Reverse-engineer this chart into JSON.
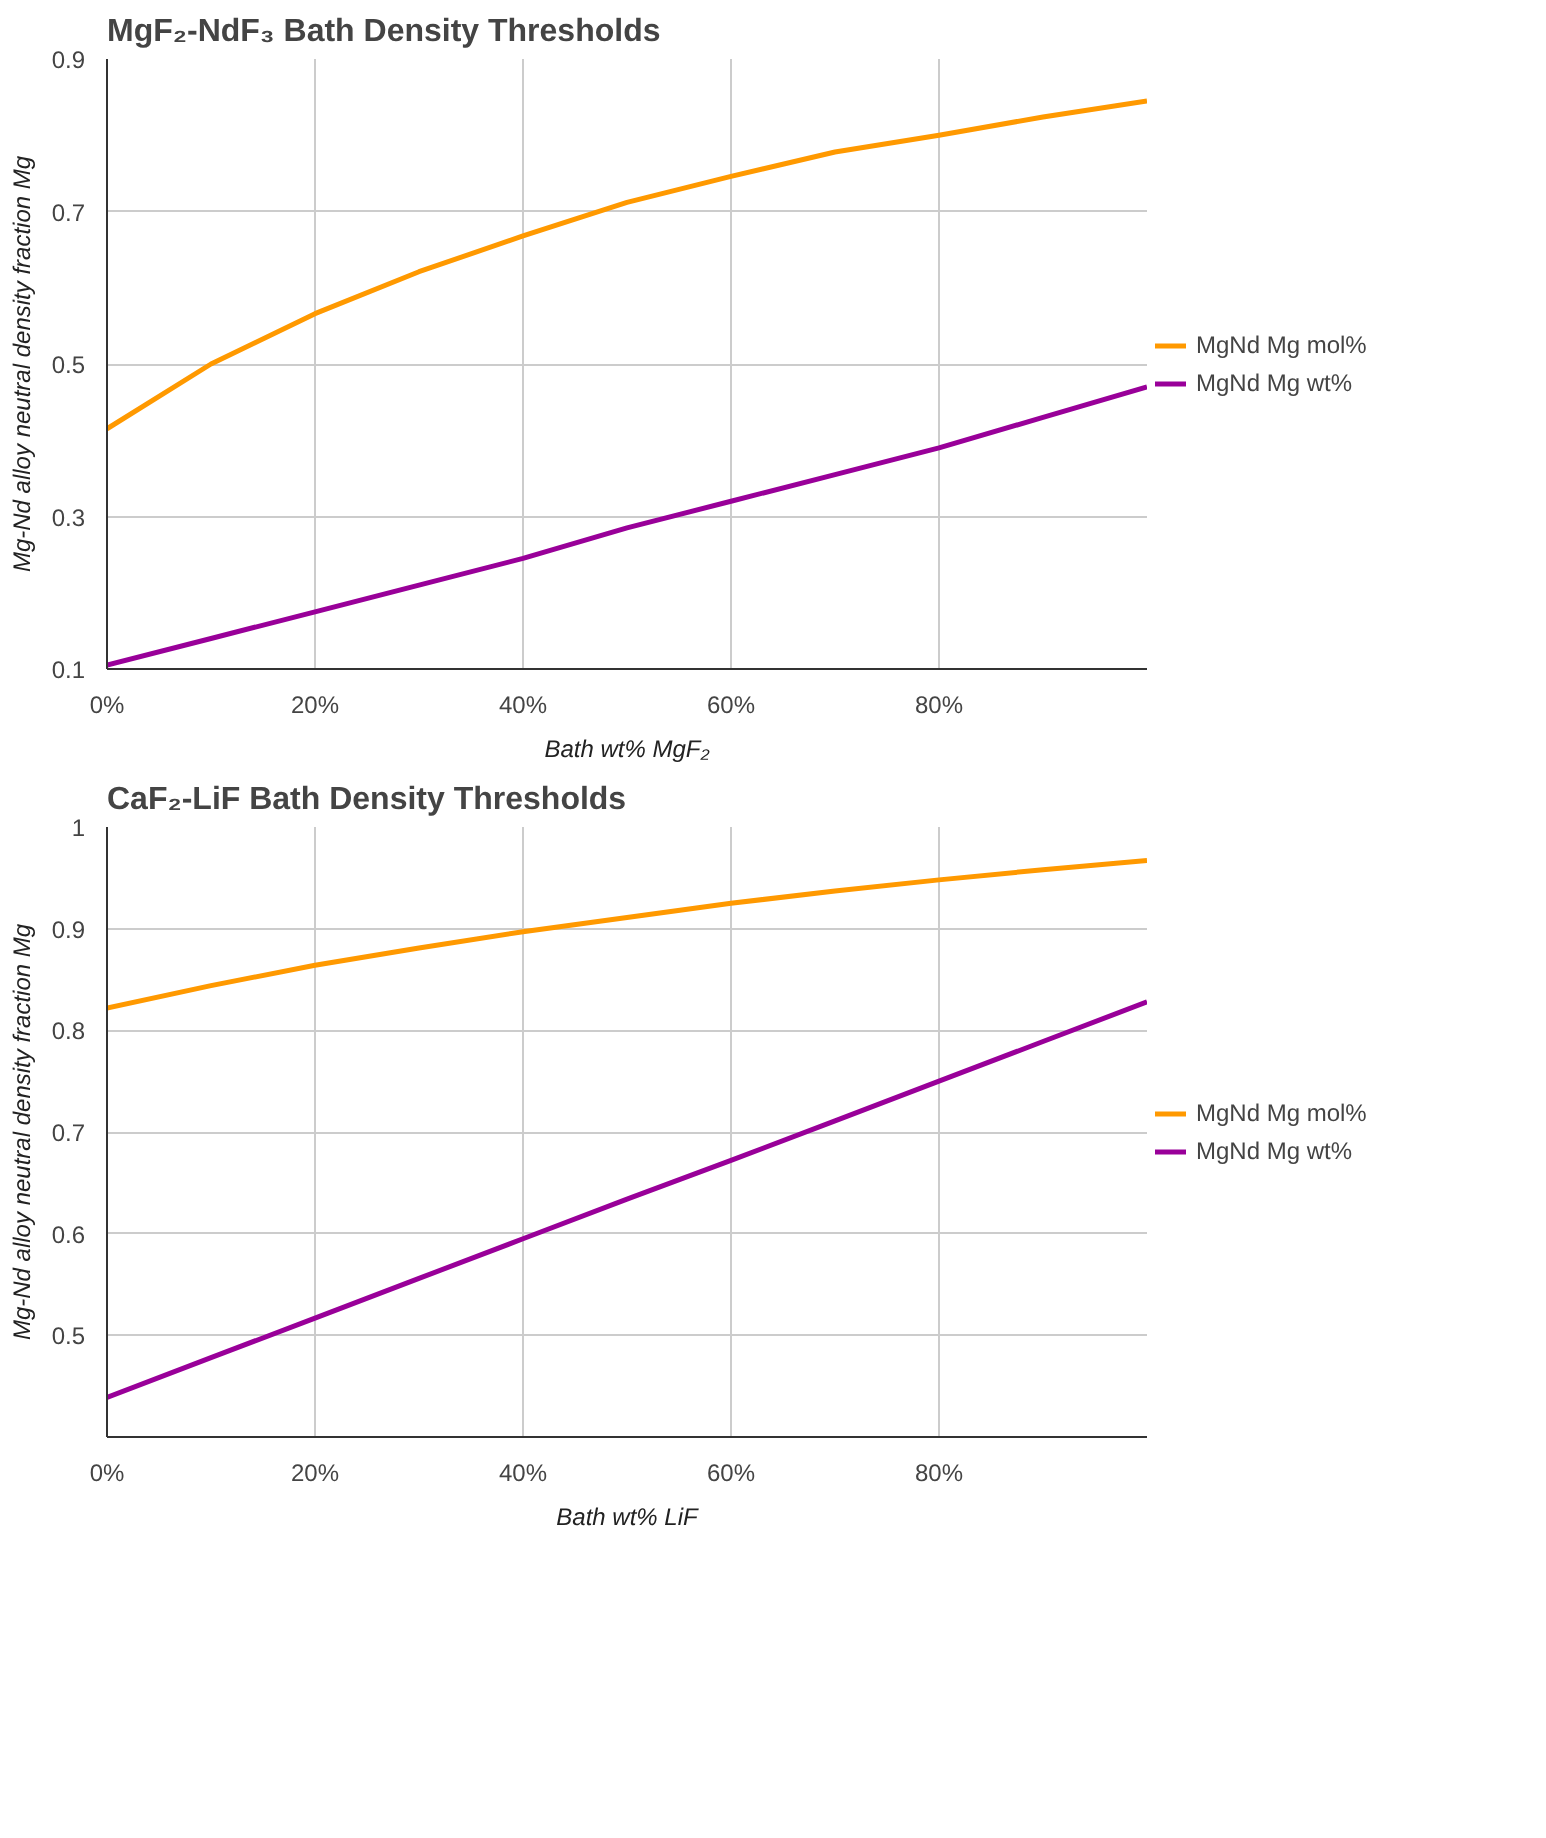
{
  "chart_data": [
    {
      "type": "line",
      "title": "MgF₂-NdF₃ Bath Density Thresholds",
      "xlabel": "Bath wt% MgF₂",
      "ylabel": "Mg-Nd alloy neutral density fraction Mg",
      "x": [
        0,
        10,
        20,
        30,
        40,
        50,
        60,
        70,
        80,
        90,
        100
      ],
      "series": [
        {
          "name": "MgNd Mg mol%",
          "color": "#ff9900",
          "values": [
            0.415,
            0.5,
            0.566,
            0.621,
            0.668,
            0.712,
            0.746,
            0.778,
            0.8,
            0.824,
            0.845
          ]
        },
        {
          "name": "MgNd Mg wt%",
          "color": "#990099",
          "values": [
            0.105,
            0.14,
            0.175,
            0.21,
            0.245,
            0.285,
            0.32,
            0.355,
            0.39,
            0.43,
            0.47
          ]
        }
      ],
      "xlim": [
        0,
        100
      ],
      "xticks": [
        {
          "value": 0,
          "label": "0%"
        },
        {
          "value": 20,
          "label": "20%"
        },
        {
          "value": 40,
          "label": "40%"
        },
        {
          "value": 60,
          "label": "60%"
        },
        {
          "value": 80,
          "label": "80%"
        }
      ],
      "ylim": [
        0.1,
        0.9
      ],
      "yticks": [
        0.1,
        0.3,
        0.5,
        0.7,
        0.9
      ],
      "grid": true,
      "legend": "right",
      "marker": "none",
      "line_style": "solid"
    },
    {
      "type": "line",
      "title": "CaF₂-LiF Bath Density Thresholds",
      "xlabel": "Bath wt% LiF",
      "ylabel": "Mg-Nd alloy neutral density fraction Mg",
      "x": [
        0,
        10,
        20,
        30,
        40,
        50,
        60,
        70,
        80,
        90,
        100
      ],
      "series": [
        {
          "name": "MgNd Mg mol%",
          "color": "#ff9900",
          "values": [
            0.822,
            0.844,
            0.864,
            0.881,
            0.897,
            0.911,
            0.925,
            0.937,
            0.948,
            0.958,
            0.967
          ]
        },
        {
          "name": "MgNd Mg wt%",
          "color": "#990099",
          "values": [
            0.439,
            0.478,
            0.517,
            0.556,
            0.595,
            0.634,
            0.672,
            0.711,
            0.75,
            0.789,
            0.828
          ]
        }
      ],
      "xlim": [
        0,
        100
      ],
      "xticks": [
        {
          "value": 0,
          "label": "0%"
        },
        {
          "value": 20,
          "label": "20%"
        },
        {
          "value": 40,
          "label": "40%"
        },
        {
          "value": 60,
          "label": "60%"
        },
        {
          "value": 80,
          "label": "80%"
        }
      ],
      "ylim": [
        0.4,
        1
      ],
      "yticks": [
        0.5,
        0.6,
        0.7,
        0.8,
        0.9,
        1
      ],
      "grid": true,
      "legend": "right",
      "marker": "none",
      "line_style": "solid"
    }
  ]
}
